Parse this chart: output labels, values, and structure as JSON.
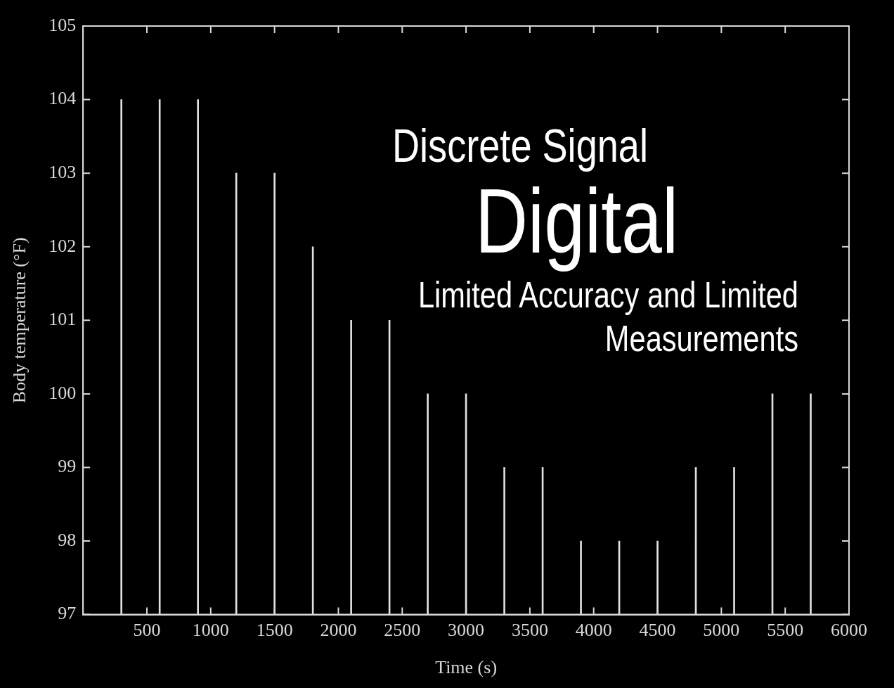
{
  "chart_data": {
    "type": "bar",
    "xlabel": "Time (s)",
    "ylabel": "Body temperature (°F)",
    "annotations": [
      "Discrete Signal",
      "Digital",
      "Limited Accuracy and Limited Measurements"
    ],
    "x": [
      300,
      600,
      900,
      1200,
      1500,
      1800,
      2100,
      2400,
      2700,
      3000,
      3300,
      3600,
      3900,
      4200,
      4500,
      4800,
      5100,
      5400,
      5700
    ],
    "values": [
      104,
      104,
      104,
      103,
      103,
      102,
      101,
      101,
      100,
      100,
      99,
      99,
      98,
      98,
      98,
      99,
      99,
      100,
      100
    ],
    "color": "#e0e0e0",
    "grid": false,
    "legend": false,
    "xlim": [
      0,
      6000
    ],
    "xticks": [
      500,
      1000,
      1500,
      2000,
      2500,
      3000,
      3500,
      4000,
      4500,
      5000,
      5500,
      6000
    ],
    "ylim": [
      97,
      105
    ],
    "yticks": [
      97,
      98,
      99,
      100,
      101,
      102,
      103,
      104,
      105
    ]
  }
}
